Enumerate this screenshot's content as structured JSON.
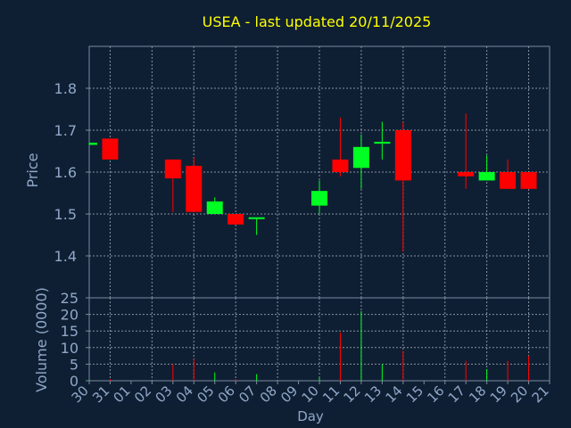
{
  "chart_data": {
    "type": "candlestick",
    "title": "USEA - last updated 20/11/2025",
    "xlabel": "Day",
    "price_panel": {
      "ylabel": "Price",
      "ylim": [
        1.3,
        1.9
      ],
      "yticks": [
        "1.4",
        "1.5",
        "1.6",
        "1.7",
        "1.8"
      ],
      "grid": true
    },
    "volume_panel": {
      "ylabel": "Volume (0000)",
      "ylim": [
        0,
        25
      ],
      "yticks": [
        "0",
        "5",
        "10",
        "15",
        "20",
        "25"
      ],
      "grid": true
    },
    "xticks": [
      "30",
      "31",
      "01",
      "02",
      "03",
      "04",
      "05",
      "06",
      "07",
      "08",
      "09",
      "10",
      "11",
      "12",
      "13",
      "14",
      "15",
      "16",
      "17",
      "18",
      "19",
      "20",
      "21"
    ],
    "candles": [
      {
        "day": "30",
        "open": 1.665,
        "high": 1.67,
        "low": 1.665,
        "close": 1.67,
        "volume": 0.3
      },
      {
        "day": "31",
        "open": 1.68,
        "high": 1.68,
        "low": 1.63,
        "close": 1.63,
        "volume": 0.5
      },
      {
        "day": "03",
        "open": 1.63,
        "high": 1.63,
        "low": 1.505,
        "close": 1.585,
        "volume": 5
      },
      {
        "day": "04",
        "open": 1.615,
        "high": 1.635,
        "low": 1.505,
        "close": 1.505,
        "volume": 6.5
      },
      {
        "day": "05",
        "open": 1.5,
        "high": 1.54,
        "low": 1.5,
        "close": 1.53,
        "volume": 2.5
      },
      {
        "day": "06",
        "open": 1.5,
        "high": 1.5,
        "low": 1.475,
        "close": 1.475,
        "volume": 0.5
      },
      {
        "day": "07",
        "open": 1.49,
        "high": 1.49,
        "low": 1.45,
        "close": 1.49,
        "volume": 2
      },
      {
        "day": "10",
        "open": 1.52,
        "high": 1.58,
        "low": 1.5,
        "close": 1.555,
        "volume": 1
      },
      {
        "day": "11",
        "open": 1.63,
        "high": 1.73,
        "low": 1.59,
        "close": 1.6,
        "volume": 14.5
      },
      {
        "day": "12",
        "open": 1.61,
        "high": 1.69,
        "low": 1.56,
        "close": 1.66,
        "volume": 21
      },
      {
        "day": "13",
        "open": 1.67,
        "high": 1.72,
        "low": 1.63,
        "close": 1.67,
        "volume": 5
      },
      {
        "day": "14",
        "open": 1.7,
        "high": 1.72,
        "low": 1.41,
        "close": 1.58,
        "volume": 9
      },
      {
        "day": "17",
        "open": 1.6,
        "high": 1.74,
        "low": 1.56,
        "close": 1.59,
        "volume": 6
      },
      {
        "day": "18",
        "open": 1.58,
        "high": 1.64,
        "low": 1.58,
        "close": 1.6,
        "volume": 3.5
      },
      {
        "day": "19",
        "open": 1.6,
        "high": 1.63,
        "low": 1.56,
        "close": 1.56,
        "volume": 6
      },
      {
        "day": "20",
        "open": 1.6,
        "high": 1.6,
        "low": 1.56,
        "close": 1.56,
        "volume": 7.5
      }
    ],
    "colors": {
      "background": "#0f1f33",
      "title": "#ffff00",
      "axis_text": "#8fa8c8",
      "axis_line": "#7a8aa0",
      "grid": "#b0b8c4",
      "up": "#00ff22",
      "down": "#ff0000"
    }
  }
}
